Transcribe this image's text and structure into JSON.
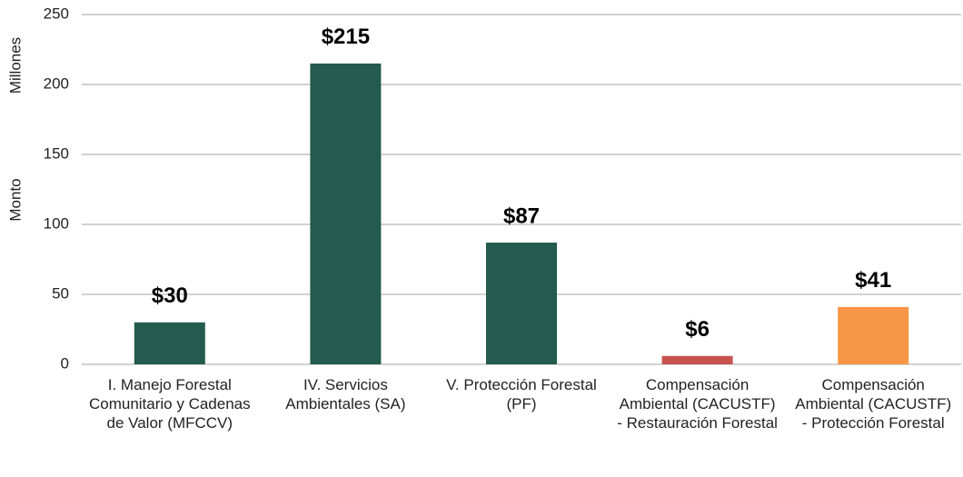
{
  "chart_data": {
    "type": "bar",
    "y_label": "Monto",
    "y_unit": "Millones",
    "categories": [
      "I. Manejo Forestal Comunitario y Cadenas de Valor (MFCCV)",
      "IV. Servicios Ambientales (SA)",
      "V. Protección Forestal (PF)",
      "Compensación Ambiental (CACUSTF) - Restauración Forestal",
      "Compensación Ambiental (CACUSTF) - Protección Forestal"
    ],
    "values": [
      30,
      215,
      87,
      6,
      41
    ],
    "value_labels": [
      "$30",
      "$215",
      "$87",
      "$6",
      "$41"
    ],
    "colors": [
      "#235b4e",
      "#235b4e",
      "#235b4e",
      "#c8524f",
      "#f79646"
    ],
    "ylim": [
      0,
      250
    ],
    "yticks": [
      0,
      50,
      100,
      150,
      200,
      250
    ],
    "grid": true
  }
}
